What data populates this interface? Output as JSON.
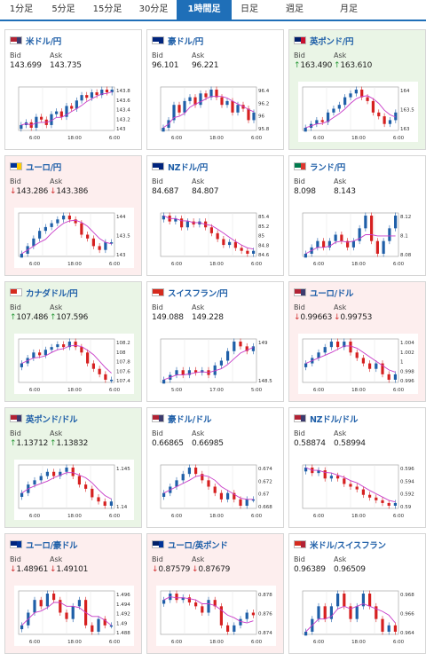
{
  "tabs": [
    {
      "label": "1分足",
      "active": false
    },
    {
      "label": "5分足",
      "active": false
    },
    {
      "label": "15分足",
      "active": false
    },
    {
      "label": "30分足",
      "active": false
    },
    {
      "label": "1時間足",
      "active": true
    },
    {
      "label": "日足",
      "active": false
    },
    {
      "label": "週足",
      "active": false
    },
    {
      "label": "月足",
      "active": false
    }
  ],
  "colors": {
    "accent": "#1f6fb8",
    "up_bg": "#eaf5e6",
    "down_bg": "#fdeeee",
    "candle_up": "#1f5fa8",
    "candle_down": "#d62020",
    "ma": "#c83cc8"
  },
  "labels": {
    "bid": "Bid",
    "ask": "Ask"
  },
  "cards": [
    {
      "pair": "米ドル/円",
      "trend": "flat",
      "arrow": "",
      "bid": "143.699",
      "ask": "143.735",
      "flag": [
        "#b22234",
        "#3c3b6e"
      ],
      "yticks": [
        "143.8",
        "143.6",
        "143.4",
        "143.2",
        "143"
      ],
      "xticks": [
        "6:00",
        "18:00",
        "6:00"
      ],
      "series": [
        143.05,
        143.1,
        143.0,
        143.2,
        143.15,
        143.05,
        143.25,
        143.3,
        143.2,
        143.4,
        143.35,
        143.5,
        143.6,
        143.55,
        143.65,
        143.6,
        143.7,
        143.65,
        143.7
      ]
    },
    {
      "pair": "豪ドル/円",
      "trend": "flat",
      "arrow": "",
      "bid": "96.101",
      "ask": "96.221",
      "flag": [
        "#00247d",
        "#00247d"
      ],
      "yticks": [
        "96.4",
        "96.2",
        "96",
        "95.8"
      ],
      "xticks": [
        "6:00",
        "18:00",
        "6:00"
      ],
      "series": [
        95.9,
        96.0,
        96.2,
        96.1,
        96.25,
        96.3,
        96.2,
        96.35,
        96.3,
        96.4,
        96.3,
        96.2,
        96.25,
        96.1,
        96.2,
        96.15,
        96.0,
        96.1
      ]
    },
    {
      "pair": "英ポンド/円",
      "trend": "up",
      "arrow": "↑",
      "bid": "163.490",
      "ask": "163.610",
      "flag": [
        "#012169",
        "#c8102e"
      ],
      "yticks": [
        "164",
        "163.5",
        "163"
      ],
      "xticks": [
        "6:00",
        "18:00",
        "6:00"
      ],
      "series": [
        163.1,
        163.2,
        163.3,
        163.25,
        163.5,
        163.6,
        163.7,
        163.9,
        164.0,
        164.1,
        163.9,
        163.8,
        163.5,
        163.4,
        163.2,
        163.3,
        163.5
      ]
    },
    {
      "pair": "ユーロ/円",
      "trend": "down",
      "arrow": "↓",
      "bid": "143.286",
      "ask": "143.386",
      "flag": [
        "#003399",
        "#ffcc00"
      ],
      "yticks": [
        "144",
        "143.5",
        "143"
      ],
      "xticks": [
        "6:00",
        "18:00",
        "6:00"
      ],
      "series": [
        143.0,
        143.2,
        143.4,
        143.6,
        143.7,
        143.8,
        143.9,
        144.0,
        143.9,
        143.8,
        143.5,
        143.4,
        143.2,
        143.1,
        143.3,
        143.3
      ]
    },
    {
      "pair": "NZドル/円",
      "trend": "flat",
      "arrow": "",
      "bid": "84.687",
      "ask": "84.807",
      "flag": [
        "#00247d",
        "#00247d"
      ],
      "yticks": [
        "85.4",
        "85.2",
        "85",
        "84.8",
        "84.6"
      ],
      "xticks": [
        "6:00",
        "18:00",
        "6:00"
      ],
      "series": [
        85.3,
        85.2,
        85.25,
        85.1,
        85.2,
        85.15,
        85.2,
        85.1,
        85.0,
        84.9,
        84.8,
        84.85,
        84.75,
        84.7,
        84.65,
        84.7
      ]
    },
    {
      "pair": "ランド/円",
      "trend": "flat",
      "arrow": "",
      "bid": "8.098",
      "ask": "8.143",
      "flag": [
        "#007a4d",
        "#de3831"
      ],
      "yticks": [
        "8.12",
        "8.1",
        "8.08"
      ],
      "xticks": [
        "6:00",
        "18:00",
        "6:00"
      ],
      "series": [
        8.09,
        8.095,
        8.1,
        8.095,
        8.1,
        8.105,
        8.1,
        8.095,
        8.1,
        8.11,
        8.12,
        8.1,
        8.09,
        8.1,
        8.11,
        8.12
      ]
    },
    {
      "pair": "カナダドル/円",
      "trend": "up",
      "arrow": "↑",
      "bid": "107.486",
      "ask": "107.596",
      "flag": [
        "#d52b1e",
        "#ffffff"
      ],
      "yticks": [
        "108.2",
        "108",
        "107.8",
        "107.6",
        "107.4"
      ],
      "xticks": [
        "6:00",
        "18:00",
        "6:00"
      ],
      "series": [
        107.8,
        107.9,
        108.0,
        107.95,
        108.05,
        108.1,
        108.15,
        108.1,
        108.2,
        108.1,
        108.0,
        107.8,
        107.7,
        107.6,
        107.5,
        107.5
      ]
    },
    {
      "pair": "スイスフラン/円",
      "trend": "flat",
      "arrow": "",
      "bid": "149.088",
      "ask": "149.228",
      "flag": [
        "#d52b1e",
        "#d52b1e"
      ],
      "yticks": [
        "149",
        "148.5"
      ],
      "xticks": [
        "5:00",
        "17:00",
        "5:00"
      ],
      "series": [
        148.4,
        148.5,
        148.6,
        148.5,
        148.6,
        148.55,
        148.6,
        148.5,
        148.7,
        148.8,
        149.0,
        149.2,
        149.1,
        149.0,
        149.1
      ]
    },
    {
      "pair": "ユーロ/ドル",
      "trend": "down",
      "arrow": "↓",
      "bid": "0.99663",
      "ask": "0.99753",
      "flag": [
        "#b22234",
        "#3c3b6e"
      ],
      "yticks": [
        "1.004",
        "1.002",
        "1",
        "0.998",
        "0.996"
      ],
      "xticks": [
        "6:00",
        "18:00",
        "6:00"
      ],
      "series": [
        0.999,
        1.0,
        1.001,
        1.002,
        1.003,
        1.002,
        1.003,
        1.001,
        1.0,
        0.999,
        0.998,
        0.999,
        0.997,
        0.996,
        0.997
      ]
    },
    {
      "pair": "英ポンド/ドル",
      "trend": "up",
      "arrow": "↑",
      "bid": "1.13712",
      "ask": "1.13832",
      "flag": [
        "#b22234",
        "#3c3b6e"
      ],
      "yticks": [
        "1.145",
        "1.14"
      ],
      "xticks": [
        "6:00",
        "18:00",
        "6:00"
      ],
      "series": [
        1.139,
        1.141,
        1.142,
        1.143,
        1.144,
        1.143,
        1.144,
        1.145,
        1.143,
        1.141,
        1.14,
        1.138,
        1.137,
        1.136,
        1.137
      ]
    },
    {
      "pair": "豪ドル/ドル",
      "trend": "flat",
      "arrow": "",
      "bid": "0.66865",
      "ask": "0.66985",
      "flag": [
        "#b22234",
        "#3c3b6e"
      ],
      "yticks": [
        "0.674",
        "0.672",
        "0.67",
        "0.668"
      ],
      "xticks": [
        "6:00",
        "18:00",
        "6:00"
      ],
      "series": [
        0.67,
        0.671,
        0.672,
        0.673,
        0.674,
        0.673,
        0.672,
        0.671,
        0.67,
        0.669,
        0.67,
        0.669,
        0.668,
        0.669,
        0.669
      ]
    },
    {
      "pair": "NZドル/ドル",
      "trend": "flat",
      "arrow": "",
      "bid": "0.58874",
      "ask": "0.58994",
      "flag": [
        "#b22234",
        "#3c3b6e"
      ],
      "yticks": [
        "0.596",
        "0.594",
        "0.592",
        "0.59"
      ],
      "xticks": [
        "6:00",
        "18:00",
        "6:00"
      ],
      "series": [
        0.596,
        0.595,
        0.5955,
        0.594,
        0.5945,
        0.594,
        0.593,
        0.5925,
        0.592,
        0.591,
        0.5905,
        0.59,
        0.5895,
        0.589,
        0.5895
      ]
    },
    {
      "pair": "ユーロ/豪ドル",
      "trend": "down",
      "arrow": "↓",
      "bid": "1.48961",
      "ask": "1.49101",
      "flag": [
        "#00247d",
        "#003399"
      ],
      "yticks": [
        "1.496",
        "1.494",
        "1.492",
        "1.49",
        "1.488"
      ],
      "xticks": [
        "6:00",
        "18:00",
        "6:00"
      ],
      "series": [
        1.49,
        1.492,
        1.494,
        1.493,
        1.495,
        1.494,
        1.492,
        1.491,
        1.493,
        1.494,
        1.49,
        1.489,
        1.491,
        1.49,
        1.49
      ]
    },
    {
      "pair": "ユーロ/英ポンド",
      "trend": "down",
      "arrow": "↓",
      "bid": "0.87579",
      "ask": "0.87679",
      "flag": [
        "#012169",
        "#003399"
      ],
      "yticks": [
        "0.878",
        "0.876",
        "0.874"
      ],
      "xticks": [
        "6:00",
        "18:00",
        "6:00"
      ],
      "series": [
        0.877,
        0.8775,
        0.877,
        0.8772,
        0.8768,
        0.8765,
        0.876,
        0.877,
        0.8765,
        0.875,
        0.8745,
        0.875,
        0.8755,
        0.876,
        0.8758
      ]
    },
    {
      "pair": "米ドル/スイスフラン",
      "trend": "flat",
      "arrow": "",
      "bid": "0.96389",
      "ask": "0.96509",
      "flag": [
        "#d52b1e",
        "#b22234"
      ],
      "yticks": [
        "0.968",
        "0.966",
        "0.964"
      ],
      "xticks": [
        "6:00",
        "18:00",
        "6:00"
      ],
      "series": [
        0.964,
        0.965,
        0.966,
        0.965,
        0.966,
        0.967,
        0.966,
        0.965,
        0.966,
        0.967,
        0.966,
        0.965,
        0.964,
        0.9645,
        0.964
      ]
    }
  ]
}
